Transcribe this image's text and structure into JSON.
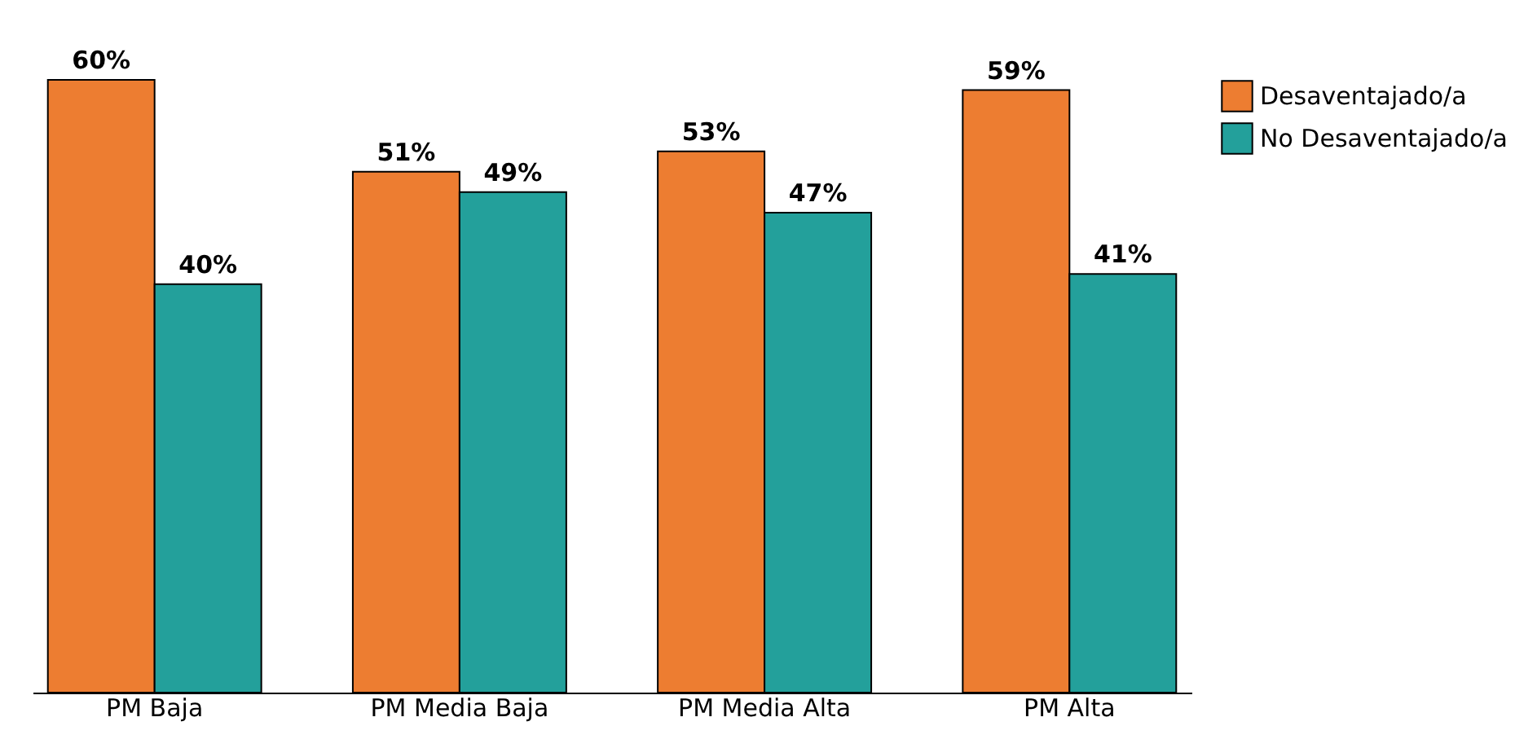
{
  "chart_data": {
    "type": "bar",
    "categories": [
      "PM Baja",
      "PM Media Baja",
      "PM Media Alta",
      "PM  Alta"
    ],
    "series": [
      {
        "name": "Desaventajado/a",
        "color": "#ed7d31",
        "values": [
          60,
          51,
          53,
          59
        ],
        "value_labels": [
          "60%",
          "51%",
          "53%",
          "59%"
        ]
      },
      {
        "name": "No Desaventajado/a",
        "color": "#23a09b",
        "values": [
          40,
          49,
          47,
          41
        ],
        "value_labels": [
          "40%",
          "49%",
          "47%",
          "41%"
        ]
      }
    ],
    "legend": "right",
    "grid": false
  }
}
